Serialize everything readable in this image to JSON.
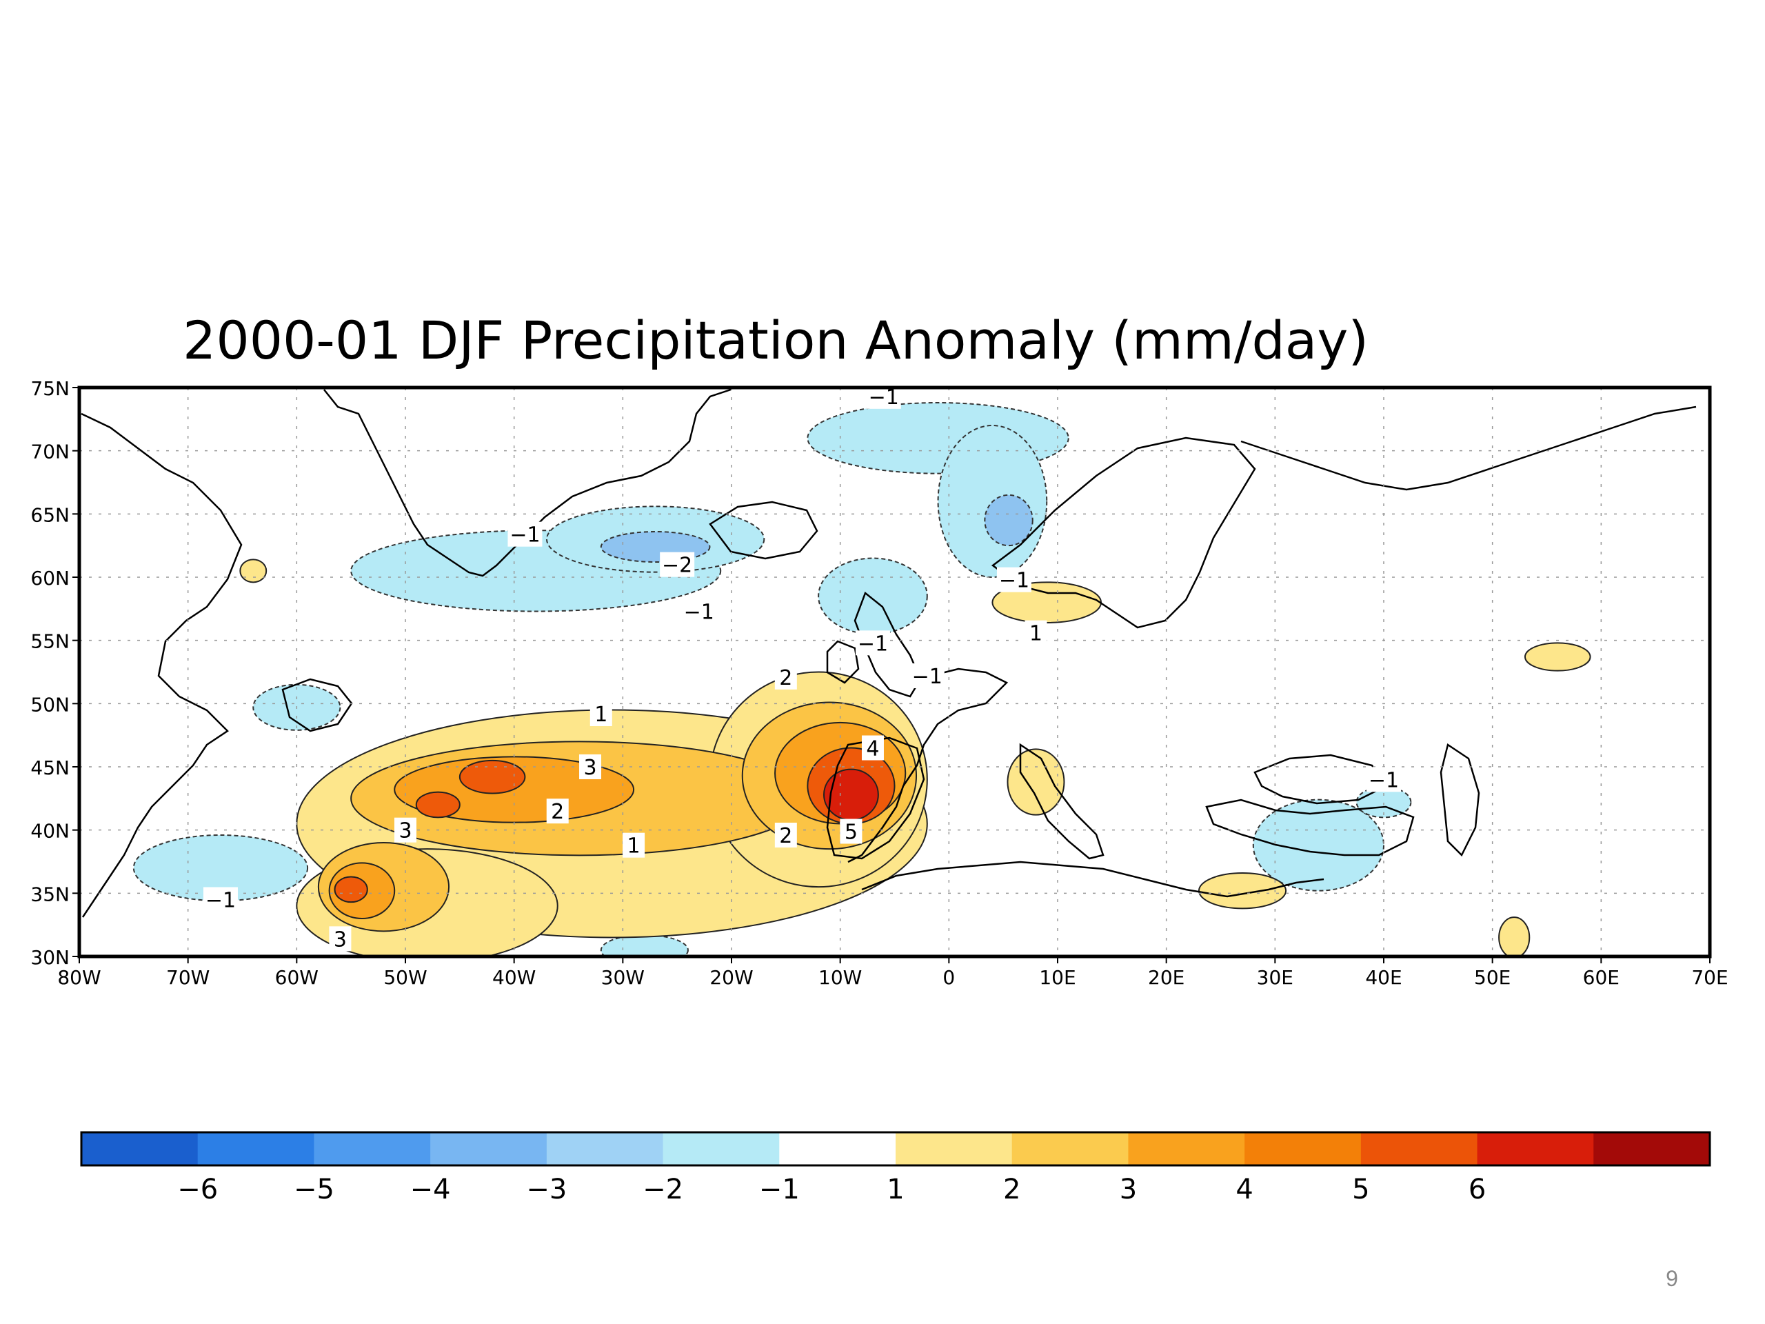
{
  "title": "2000-01 DJF Precipitation Anomaly (mm/day)",
  "page_number": "9",
  "map": {
    "lat_ticks": [
      "75N",
      "70N",
      "65N",
      "60N",
      "55N",
      "50N",
      "45N",
      "40N",
      "35N",
      "30N"
    ],
    "lon_ticks": [
      "80W",
      "70W",
      "60W",
      "50W",
      "40W",
      "30W",
      "20W",
      "10W",
      "0",
      "10E",
      "20E",
      "30E",
      "40E",
      "50E",
      "60E",
      "70E"
    ],
    "lat_range": [
      30,
      75
    ],
    "lon_range": [
      -80,
      70
    ],
    "contour_labels": [
      {
        "text": "-1",
        "lon": -6,
        "lat": 74.3
      },
      {
        "text": "-1",
        "lon": -39,
        "lat": 63.4
      },
      {
        "text": "-2",
        "lon": -25,
        "lat": 61.0
      },
      {
        "text": "-1",
        "lon": -23,
        "lat": 57.3
      },
      {
        "text": "-1",
        "lon": -7,
        "lat": 54.8
      },
      {
        "text": "-1",
        "lon": -2,
        "lat": 52.2
      },
      {
        "text": "-1",
        "lon": 6,
        "lat": 59.8
      },
      {
        "text": "1",
        "lon": 8,
        "lat": 55.6
      },
      {
        "text": "2",
        "lon": -15,
        "lat": 52.1
      },
      {
        "text": "1",
        "lon": -32,
        "lat": 49.2
      },
      {
        "text": "3",
        "lon": -33,
        "lat": 45.0
      },
      {
        "text": "2",
        "lon": -36,
        "lat": 41.5
      },
      {
        "text": "3",
        "lon": -50,
        "lat": 40.0
      },
      {
        "text": "1",
        "lon": -29,
        "lat": 38.8
      },
      {
        "text": "2",
        "lon": -15,
        "lat": 39.6
      },
      {
        "text": "4",
        "lon": -7,
        "lat": 46.5
      },
      {
        "text": "5",
        "lon": -9,
        "lat": 39.9
      },
      {
        "text": "-1",
        "lon": 40,
        "lat": 44.0
      },
      {
        "text": "-1",
        "lon": -67,
        "lat": 34.5
      },
      {
        "text": "3",
        "lon": -56,
        "lat": 31.4
      }
    ],
    "anomaly_regions": [
      {
        "level": -1,
        "lon": -38,
        "lat": 60.5,
        "rlon": 17,
        "rlat": 3.2
      },
      {
        "level": -1,
        "lon": -27,
        "lat": 63.0,
        "rlon": 10,
        "rlat": 2.6
      },
      {
        "level": -2,
        "lon": -27,
        "lat": 62.4,
        "rlon": 5,
        "rlat": 1.2
      },
      {
        "level": -1,
        "lon": -1,
        "lat": 71.0,
        "rlon": 12,
        "rlat": 2.8
      },
      {
        "level": -1,
        "lon": 4,
        "lat": 66.0,
        "rlon": 5,
        "rlat": 6.0
      },
      {
        "level": -2,
        "lon": 5.5,
        "lat": 64.5,
        "rlon": 2.2,
        "rlat": 2.0
      },
      {
        "level": -1,
        "lon": -7,
        "lat": 58.5,
        "rlon": 5,
        "rlat": 3.0
      },
      {
        "level": -1,
        "lon": -60,
        "lat": 49.7,
        "rlon": 4,
        "rlat": 1.8
      },
      {
        "level": -1,
        "lon": -67,
        "lat": 37.0,
        "rlon": 8,
        "rlat": 2.6
      },
      {
        "level": -1,
        "lon": 34,
        "lat": 38.8,
        "rlon": 6,
        "rlat": 3.6
      },
      {
        "level": -1,
        "lon": 40,
        "lat": 42.2,
        "rlon": 2.5,
        "rlat": 1.2
      },
      {
        "level": -1,
        "lon": -28,
        "lat": 30.5,
        "rlon": 4,
        "rlat": 1.2
      },
      {
        "level": 1,
        "lon": -64,
        "lat": 60.5,
        "rlon": 1.2,
        "rlat": 0.9
      },
      {
        "level": 1,
        "lon": 9,
        "lat": 58.0,
        "rlon": 5,
        "rlat": 1.6
      },
      {
        "level": 1,
        "lon": 8,
        "lat": 43.8,
        "rlon": 2.6,
        "rlat": 2.6
      },
      {
        "level": 1,
        "lon": 27,
        "lat": 35.2,
        "rlon": 4,
        "rlat": 1.4
      },
      {
        "level": 1,
        "lon": 56,
        "lat": 53.7,
        "rlon": 3,
        "rlat": 1.1
      },
      {
        "level": 1,
        "lon": 52,
        "lat": 31.5,
        "rlon": 1.4,
        "rlat": 1.6
      },
      {
        "level": 1,
        "lon": -31,
        "lat": 40.5,
        "rlon": 29,
        "rlat": 9.0
      },
      {
        "level": 1,
        "lon": -12,
        "lat": 44.0,
        "rlon": 10,
        "rlat": 8.5
      },
      {
        "level": 1,
        "lon": -48,
        "lat": 34.0,
        "rlon": 12,
        "rlat": 4.5
      },
      {
        "level": 2,
        "lon": -34,
        "lat": 42.5,
        "rlon": 21,
        "rlat": 4.5
      },
      {
        "level": 2,
        "lon": -11,
        "lat": 44.3,
        "rlon": 8,
        "rlat": 5.8
      },
      {
        "level": 2,
        "lon": -52,
        "lat": 35.5,
        "rlon": 6,
        "rlat": 3.5
      },
      {
        "level": 3,
        "lon": -40,
        "lat": 43.2,
        "rlon": 11,
        "rlat": 2.6
      },
      {
        "level": 3,
        "lon": -10,
        "lat": 44.5,
        "rlon": 6,
        "rlat": 4.0
      },
      {
        "level": 3,
        "lon": -54,
        "lat": 35.2,
        "rlon": 3,
        "rlat": 2.2
      },
      {
        "level": 4,
        "lon": -42,
        "lat": 44.2,
        "rlon": 3,
        "rlat": 1.3
      },
      {
        "level": 4,
        "lon": -47,
        "lat": 42.0,
        "rlon": 2,
        "rlat": 1.0
      },
      {
        "level": 4,
        "lon": -9,
        "lat": 43.5,
        "rlon": 4,
        "rlat": 3.0
      },
      {
        "level": 4,
        "lon": -55,
        "lat": 35.3,
        "rlon": 1.5,
        "rlat": 1.0
      },
      {
        "level": 5,
        "lon": -9,
        "lat": 42.8,
        "rlon": 2.5,
        "rlat": 2.0
      }
    ]
  },
  "colorbar": {
    "labels": [
      "-6",
      "-5",
      "-4",
      "-3",
      "-2",
      "-1",
      "1",
      "2",
      "3",
      "4",
      "5",
      "6"
    ],
    "colors": [
      "#1a5fce",
      "#2c7fe6",
      "#4f9bee",
      "#78b6f2",
      "#9fd2f5",
      "#b5eaf6",
      "#ffffff",
      "#fde68b",
      "#fbcb4e",
      "#f9a21e",
      "#f38008",
      "#ec5408",
      "#d81e0a",
      "#a30a08"
    ]
  },
  "level_colors": {
    "-2": "#8ec3f0",
    "-1": "#b5eaf6",
    "1": "#fde68b",
    "2": "#fbc445",
    "3": "#f9a21e",
    "4": "#ee5a0a",
    "5": "#d81e0a"
  }
}
